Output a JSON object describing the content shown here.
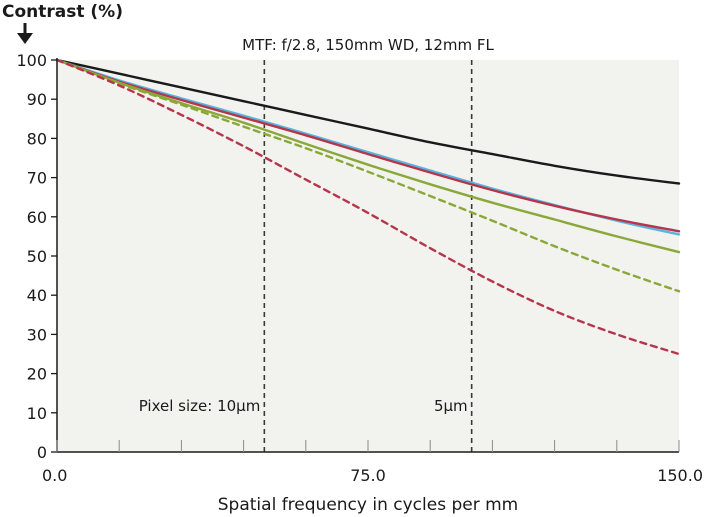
{
  "chart_data": {
    "type": "line",
    "title": "MTF: f/2.8, 150mm WD, 12mm FL",
    "ylabel": "Contrast (%)",
    "xlabel": "Spatial frequency in cycles per mm",
    "xlim": [
      0,
      150
    ],
    "ylim": [
      0,
      100
    ],
    "x_ticks": [
      0,
      75,
      150
    ],
    "x_tick_labels": [
      "0.0",
      "75.0",
      "150.0"
    ],
    "y_ticks": [
      0,
      10,
      20,
      30,
      40,
      50,
      60,
      70,
      80,
      90,
      100
    ],
    "y_tick_labels": [
      "0",
      "10",
      "20",
      "30",
      "40",
      "50",
      "60",
      "70",
      "80",
      "90",
      "100"
    ],
    "x_minor_ticks": [
      0,
      15,
      30,
      45,
      60,
      75,
      90,
      105,
      120,
      135,
      150
    ],
    "grid": false,
    "annotations": [
      {
        "text": "Pixel size: 10µm",
        "x": 50
      },
      {
        "text": "5µm",
        "x": 100
      }
    ],
    "reference_lines": [
      {
        "x": 50,
        "style": "dashed"
      },
      {
        "x": 100,
        "style": "dashed"
      }
    ],
    "series": [
      {
        "color": "#1a1a1a",
        "style": "solid",
        "x": [
          0,
          15,
          30,
          45,
          60,
          75,
          90,
          105,
          120,
          135,
          150
        ],
        "y": [
          100,
          96.5,
          93,
          89.5,
          86,
          82.5,
          79,
          76,
          73,
          70.5,
          68.5
        ]
      },
      {
        "color": "#5ab4e0",
        "style": "solid",
        "x": [
          0,
          15,
          30,
          45,
          60,
          75,
          90,
          105,
          120,
          135,
          150
        ],
        "y": [
          100,
          94.8,
          90.2,
          85.8,
          81.2,
          76.5,
          71.8,
          67.2,
          63,
          59,
          55.5
        ]
      },
      {
        "color": "#b5364a",
        "style": "solid",
        "x": [
          0,
          15,
          30,
          45,
          60,
          75,
          90,
          105,
          120,
          135,
          150
        ],
        "y": [
          100,
          94.5,
          89.8,
          85.3,
          80.8,
          76,
          71.3,
          66.8,
          62.8,
          59.3,
          56.3
        ]
      },
      {
        "color": "#8aa83a",
        "style": "solid",
        "x": [
          0,
          15,
          30,
          45,
          60,
          75,
          90,
          105,
          120,
          135,
          150
        ],
        "y": [
          100,
          94.2,
          89,
          84,
          78.6,
          73.3,
          68.3,
          63.6,
          59.3,
          55,
          51
        ]
      },
      {
        "color": "#8aa83a",
        "style": "dashed",
        "x": [
          0,
          15,
          30,
          45,
          60,
          75,
          90,
          105,
          120,
          135,
          150
        ],
        "y": [
          100,
          94,
          88.6,
          83,
          77.5,
          71.5,
          65.3,
          59,
          52.5,
          46.5,
          41
        ]
      },
      {
        "color": "#b5364a",
        "style": "dashed",
        "x": [
          0,
          15,
          30,
          45,
          60,
          75,
          90,
          105,
          120,
          135,
          150
        ],
        "y": [
          100,
          93.5,
          86,
          78,
          69.5,
          61,
          52,
          43.5,
          36,
          30,
          25
        ]
      }
    ]
  }
}
